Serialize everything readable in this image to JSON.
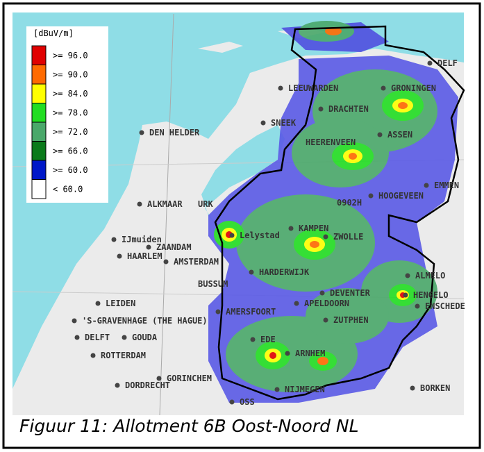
{
  "legend": {
    "unit": "[dBuV/m]",
    "entries": [
      {
        "label": ">= 96.0",
        "color": "#e00000"
      },
      {
        "label": ">= 90.0",
        "color": "#ff6a00"
      },
      {
        "label": ">= 84.0",
        "color": "#ffff00"
      },
      {
        "label": ">= 78.0",
        "color": "#22dd22"
      },
      {
        "label": ">= 72.0",
        "color": "#4aa86a"
      },
      {
        "label": ">= 66.0",
        "color": "#0a7a1a"
      },
      {
        "label": ">= 60.0",
        "color": "#0018c8"
      },
      {
        "label": "<  60.0",
        "color": "#ffffff"
      }
    ]
  },
  "places": [
    "LEEUWARDEN",
    "GRONINGEN",
    "DELF",
    "DRACHTEN",
    "SNEEK",
    "DEN HELDER",
    "HEERENVEEN",
    "ASSEN",
    "EMMEN",
    "HOOGEVEEN",
    "ALKMAAR",
    "URK",
    "0902H",
    "Lelystad",
    "KAMPEN",
    "ZWOLLE",
    "IJmuiden",
    "ZAANDAM",
    "HAARLEM",
    "AMSTERDAM",
    "HARDERWIJK",
    "ALMELO",
    "BUSSUM",
    "DEVENTER",
    "HENGELO",
    "LEIDEN",
    "ENSCHEDE",
    "APELDOORN",
    "AMERSFOORT",
    "'S-GRAVENHAGE (THE HAGUE)",
    "ZUTPHEN",
    "DELFT",
    "GOUDA",
    "EDE",
    "ARNHEM",
    "ROTTERDAM",
    "GORINCHEM",
    "DORDRECHT",
    "NIJMEGEN",
    "BORKEN",
    "OSS"
  ],
  "caption": "Figuur 11: Allotment 6B Oost-Noord NL"
}
